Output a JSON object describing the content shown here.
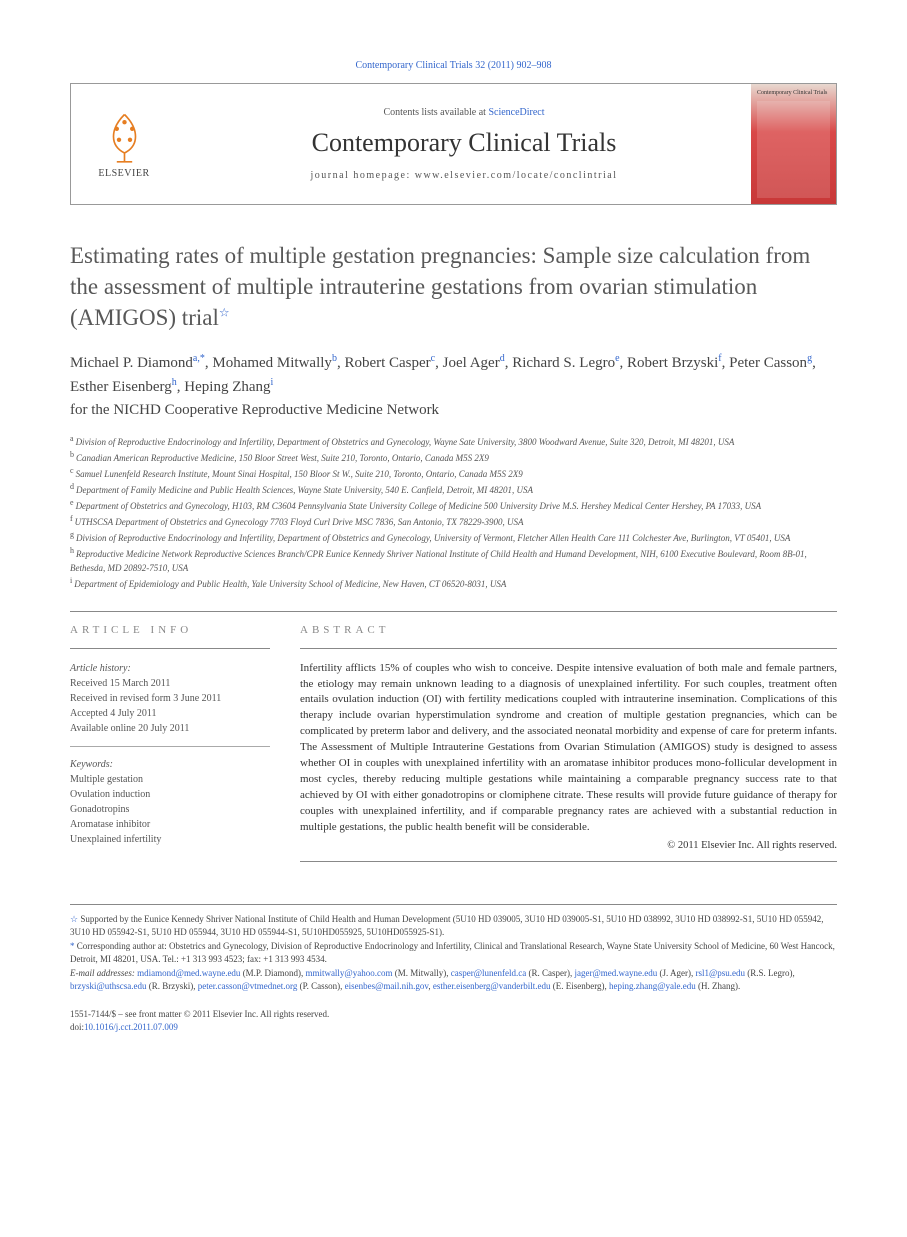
{
  "citation": "Contemporary Clinical Trials 32 (2011) 902–908",
  "header": {
    "elsevier": "ELSEVIER",
    "contents_prefix": "Contents lists available at ",
    "contents_link": "ScienceDirect",
    "journal": "Contemporary Clinical Trials",
    "homepage": "journal homepage: www.elsevier.com/locate/conclintrial",
    "cover_title": "Contemporary Clinical Trials"
  },
  "title": "Estimating rates of multiple gestation pregnancies: Sample size calculation from the assessment of multiple intrauterine gestations from ovarian stimulation (AMIGOS) trial",
  "title_star": "☆",
  "authors_html": "Michael P. Diamond",
  "authors": [
    {
      "name": "Michael P. Diamond",
      "sup": "a,*"
    },
    {
      "name": "Mohamed Mitwally",
      "sup": "b"
    },
    {
      "name": "Robert Casper",
      "sup": "c"
    },
    {
      "name": "Joel Ager",
      "sup": "d"
    },
    {
      "name": "Richard S. Legro",
      "sup": "e"
    },
    {
      "name": "Robert Brzyski",
      "sup": "f"
    },
    {
      "name": "Peter Casson",
      "sup": "g"
    },
    {
      "name": "Esther Eisenberg",
      "sup": "h"
    },
    {
      "name": "Heping Zhang",
      "sup": "i"
    }
  ],
  "network": "for the NICHD Cooperative Reproductive Medicine Network",
  "affiliations": [
    {
      "l": "a",
      "t": "Division of Reproductive Endocrinology and Infertility, Department of Obstetrics and Gynecology, Wayne Sate University, 3800 Woodward Avenue, Suite 320, Detroit, MI 48201, USA"
    },
    {
      "l": "b",
      "t": "Canadian American Reproductive Medicine, 150 Bloor Street West, Suite 210, Toronto, Ontario, Canada M5S 2X9"
    },
    {
      "l": "c",
      "t": "Samuel Lunenfeld Research Institute, Mount Sinai Hospital, 150 Bloor St W., Suite 210, Toronto, Ontario, Canada M5S 2X9"
    },
    {
      "l": "d",
      "t": "Department of Family Medicine and Public Health Sciences, Wayne State University, 540 E. Canfield, Detroit, MI 48201, USA"
    },
    {
      "l": "e",
      "t": "Department of Obstetrics and Gynecology, H103, RM C3604 Pennsylvania State University College of Medicine 500 University Drive M.S. Hershey Medical Center Hershey, PA 17033, USA"
    },
    {
      "l": "f",
      "t": "UTHSCSA Department of Obstetrics and Gynecology 7703 Floyd Curl Drive MSC 7836, San Antonio, TX 78229-3900, USA"
    },
    {
      "l": "g",
      "t": "Division of Reproductive Endocrinology and Infertility, Department of Obstetrics and Gynecology, University of Vermont, Fletcher Allen Health Care 111 Colchester Ave, Burlington, VT 05401, USA"
    },
    {
      "l": "h",
      "t": "Reproductive Medicine Network Reproductive Sciences Branch/CPR Eunice Kennedy Shriver National Institute of Child Health and Humand Development, NIH, 6100 Executive Boulevard, Room 8B-01, Bethesda, MD 20892-7510, USA"
    },
    {
      "l": "i",
      "t": "Department of Epidemiology and Public Health, Yale University School of Medicine, New Haven, CT 06520-8031, USA"
    }
  ],
  "info": {
    "heading": "ARTICLE INFO",
    "history_label": "Article history:",
    "history": [
      "Received 15 March 2011",
      "Received in revised form 3 June 2011",
      "Accepted 4 July 2011",
      "Available online 20 July 2011"
    ],
    "keywords_label": "Keywords:",
    "keywords": [
      "Multiple gestation",
      "Ovulation induction",
      "Gonadotropins",
      "Aromatase inhibitor",
      "Unexplained infertility"
    ]
  },
  "abstract": {
    "heading": "ABSTRACT",
    "text": "Infertility afflicts 15% of couples who wish to conceive. Despite intensive evaluation of both male and female partners, the etiology may remain unknown leading to a diagnosis of unexplained infertility. For such couples, treatment often entails ovulation induction (OI) with fertility medications coupled with intrauterine insemination. Complications of this therapy include ovarian hyperstimulation syndrome and creation of multiple gestation pregnancies, which can be complicated by preterm labor and delivery, and the associated neonatal morbidity and expense of care for preterm infants. The Assessment of Multiple Intrauterine Gestations from Ovarian Stimulation (AMIGOS) study is designed to assess whether OI in couples with unexplained infertility with an aromatase inhibitor produces mono-follicular development in most cycles, thereby reducing multiple gestations while maintaining a comparable pregnancy success rate to that achieved by OI with either gonadotropins or clomiphene citrate. These results will provide future guidance of therapy for couples with unexplained infertility, and if comparable pregnancy rates are achieved with a substantial reduction in multiple gestations, the public health benefit will be considerable.",
    "copyright": "© 2011 Elsevier Inc. All rights reserved."
  },
  "footnotes": {
    "funding_sym": "☆",
    "funding": "Supported by the Eunice Kennedy Shriver National Institute of Child Health and Human Development (5U10 HD 039005, 3U10 HD 039005-S1, 5U10 HD 038992, 3U10 HD 038992-S1, 5U10 HD 055942, 3U10 HD 055942-S1, 5U10 HD 055944, 3U10 HD 055944-S1, 5U10HD055925, 5U10HD055925-S1).",
    "corr_sym": "*",
    "corr": "Corresponding author at: Obstetrics and Gynecology, Division of Reproductive Endocrinology and Infertility, Clinical and Translational Research, Wayne State University School of Medicine, 60 West Hancock, Detroit, MI 48201, USA. Tel.: +1 313 993 4523; fax: +1 313 993 4534.",
    "email_label": "E-mail addresses: ",
    "emails": [
      {
        "addr": "mdiamond@med.wayne.edu",
        "who": "(M.P. Diamond)"
      },
      {
        "addr": "mmitwally@yahoo.com",
        "who": "(M. Mitwally)"
      },
      {
        "addr": "casper@lunenfeld.ca",
        "who": "(R. Casper)"
      },
      {
        "addr": "jager@med.wayne.edu",
        "who": "(J. Ager)"
      },
      {
        "addr": "rsl1@psu.edu",
        "who": "(R.S. Legro)"
      },
      {
        "addr": "brzyski@uthscsa.edu",
        "who": "(R. Brzyski)"
      },
      {
        "addr": "peter.casson@vtmednet.org",
        "who": "(P. Casson)"
      },
      {
        "addr": "eisenbes@mail.nih.gov",
        "who": ""
      },
      {
        "addr": "esther.eisenberg@vanderbilt.edu",
        "who": "(E. Eisenberg)"
      },
      {
        "addr": "heping.zhang@yale.edu",
        "who": "(H. Zhang)"
      }
    ]
  },
  "doi": {
    "front_matter": "1551-7144/$ – see front matter © 2011 Elsevier Inc. All rights reserved.",
    "doi_label": "doi:",
    "doi": "10.1016/j.cct.2011.07.009"
  }
}
